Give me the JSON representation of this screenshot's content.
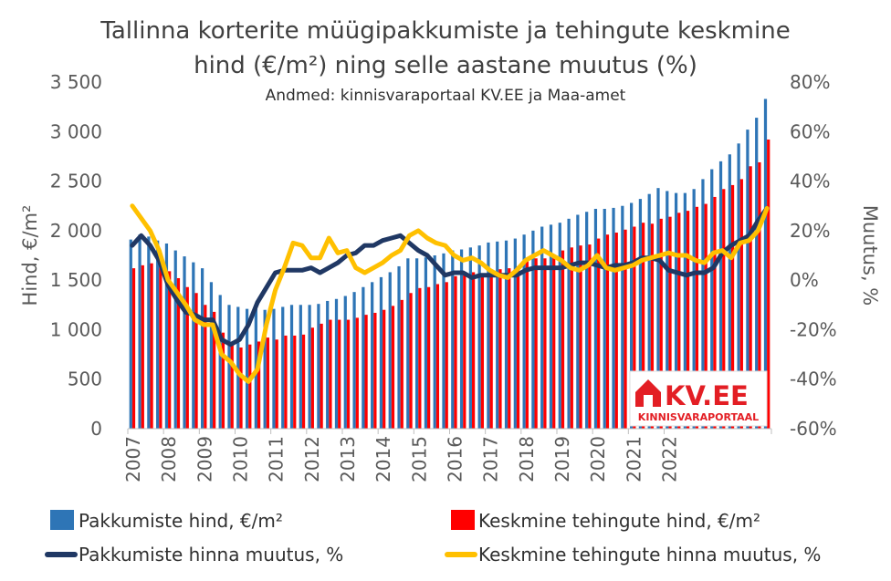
{
  "chart_data": {
    "type": "bar",
    "title_line1": "Tallinna korterite müügipakkumiste ja tehingute keskmine",
    "title_line2": "hind (€/m²) ning selle aastane muutus (%)",
    "subtitle": "Andmed: kinnisvaraportaal KV.EE ja Maa-amet",
    "ylabel_left": "Hind, €/m²",
    "ylabel_right": "Muutus, %",
    "ylim_left": [
      0,
      3500
    ],
    "ylim_right": [
      -60,
      80
    ],
    "yticks_left": [
      "0",
      "500",
      "1 000",
      "1 500",
      "2 000",
      "2 500",
      "3 000",
      "3 500"
    ],
    "yticks_right": [
      "-60%",
      "-40%",
      "-20%",
      "0%",
      "20%",
      "40%",
      "60%",
      "80%"
    ],
    "years": [
      "2007",
      "2008",
      "2009",
      "2010",
      "2011",
      "2012",
      "2013",
      "2014",
      "2015",
      "2016",
      "2017",
      "2018",
      "2019",
      "2020",
      "2021",
      "2022"
    ],
    "quarters_per_year": 4,
    "series": [
      {
        "name": "Pakkumiste hind, €/m²",
        "kind": "bar",
        "color": "#2e75b6",
        "values": [
          1910,
          1960,
          1940,
          1900,
          1870,
          1800,
          1740,
          1680,
          1620,
          1480,
          1350,
          1250,
          1230,
          1210,
          1210,
          1200,
          1210,
          1230,
          1250,
          1250,
          1250,
          1260,
          1290,
          1310,
          1340,
          1380,
          1430,
          1480,
          1530,
          1580,
          1640,
          1720,
          1720,
          1730,
          1750,
          1770,
          1800,
          1810,
          1830,
          1850,
          1880,
          1890,
          1900,
          1920,
          1960,
          2000,
          2040,
          2060,
          2080,
          2120,
          2160,
          2190,
          2220,
          2220,
          2230,
          2250,
          2280,
          2320,
          2370,
          2430,
          2400,
          2380,
          2380,
          2420,
          2520,
          2620,
          2700,
          2770,
          2880,
          3020,
          3140,
          3330
        ]
      },
      {
        "name": "Keskmine tehingute hind, €/m²",
        "kind": "bar",
        "color": "#ff0000",
        "values": [
          1620,
          1650,
          1670,
          1640,
          1590,
          1520,
          1430,
          1370,
          1250,
          1180,
          970,
          850,
          820,
          850,
          880,
          920,
          900,
          940,
          940,
          950,
          1020,
          1060,
          1100,
          1100,
          1100,
          1120,
          1150,
          1170,
          1200,
          1240,
          1300,
          1370,
          1420,
          1430,
          1460,
          1480,
          1540,
          1550,
          1580,
          1560,
          1580,
          1610,
          1620,
          1640,
          1700,
          1720,
          1720,
          1760,
          1800,
          1830,
          1850,
          1860,
          1920,
          1960,
          1980,
          2010,
          2040,
          2080,
          2070,
          2120,
          2140,
          2180,
          2200,
          2240,
          2270,
          2340,
          2420,
          2460,
          2520,
          2650,
          2690,
          2920
        ]
      },
      {
        "name": "Pakkumiste hinna muutus, %",
        "kind": "line",
        "color": "#203864",
        "values": [
          14,
          18,
          14,
          8,
          -2,
          -8,
          -13,
          -14,
          -16,
          -16,
          -24,
          -26,
          -24,
          -18,
          -9,
          -3,
          3,
          4,
          4,
          4,
          5,
          3,
          5,
          7,
          10,
          11,
          14,
          14,
          16,
          17,
          18,
          15,
          12,
          10,
          6,
          2,
          3,
          3,
          1,
          2,
          2,
          2,
          2,
          2,
          4,
          5,
          5,
          5,
          5,
          6,
          7,
          7,
          6,
          5,
          6,
          6,
          7,
          9,
          9,
          8,
          4,
          3,
          2,
          3,
          3,
          5,
          11,
          14,
          16,
          18,
          24,
          29
        ]
      },
      {
        "name": "Keskmine tehingute hinna muutus, %",
        "kind": "line",
        "color": "#ffc000",
        "values": [
          30,
          25,
          20,
          12,
          0,
          -5,
          -10,
          -16,
          -18,
          -18,
          -30,
          -33,
          -38,
          -41,
          -36,
          -18,
          -4,
          5,
          15,
          14,
          9,
          9,
          17,
          11,
          12,
          5,
          3,
          5,
          7,
          10,
          12,
          18,
          20,
          17,
          15,
          14,
          10,
          8,
          9,
          7,
          4,
          2,
          1,
          4,
          8,
          10,
          12,
          10,
          8,
          5,
          4,
          6,
          10,
          5,
          4,
          5,
          6,
          8,
          9,
          10,
          11,
          10,
          10,
          8,
          7,
          11,
          12,
          9,
          15,
          16,
          20,
          29
        ]
      }
    ],
    "legend_placement": "bottom",
    "grid": false
  },
  "logo": {
    "name": "KV.EE",
    "tagline": "KINNISVARAPORTAAL",
    "color": "#e31e24"
  }
}
